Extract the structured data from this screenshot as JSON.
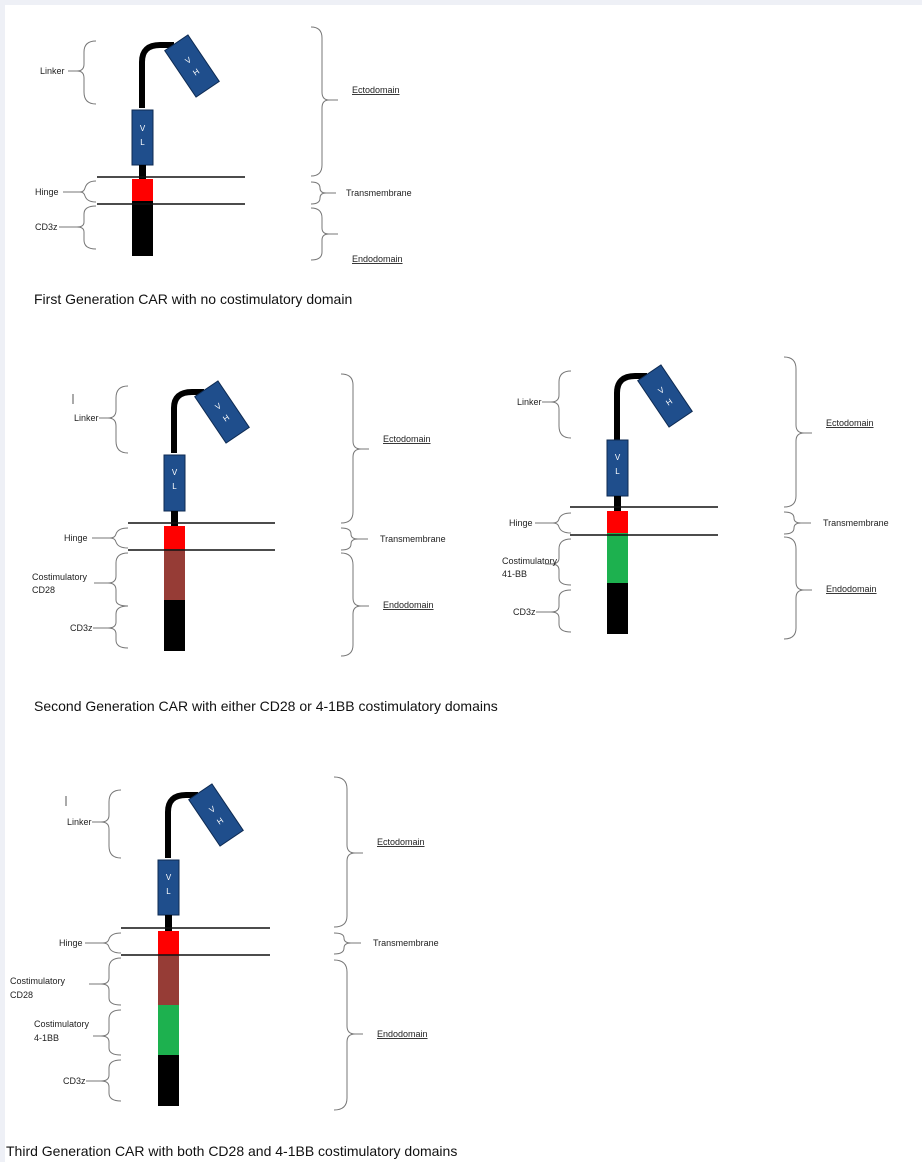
{
  "colors": {
    "vdomain": "#1f4e8c",
    "hinge": "#ff0000",
    "cd28": "#963c36",
    "bb41": "#1db14f",
    "cd3z": "#000000"
  },
  "panels": [
    {
      "caption": "First Generation CAR with no costimulatory domain",
      "vh": [
        "V",
        "H"
      ],
      "vl": [
        "V",
        "L"
      ],
      "left_labels": {
        "linker": "Linker",
        "hinge": "Hinge",
        "cd3z": "CD3z"
      },
      "right_labels": {
        "ectodomain": "Ectodomain",
        "transmembrane": "Transmembrane",
        "endodomain": "Endodomain"
      }
    },
    {
      "caption": "Second Generation CAR with either CD28 or 4-1BB costimulatory domains",
      "vh": [
        "V",
        "H"
      ],
      "vl": [
        "V",
        "L"
      ],
      "left_labels": {
        "linker": "Linker",
        "hinge": "Hinge",
        "cost_line1": "Costimulatory",
        "cost_line2": "CD28",
        "cd3z": "CD3z"
      },
      "right_labels": {
        "ectodomain": "Ectodomain",
        "transmembrane": "Transmembrane",
        "endodomain": "Endodomain"
      }
    },
    {
      "vh": [
        "V",
        "H"
      ],
      "vl": [
        "V",
        "L"
      ],
      "left_labels": {
        "linker": "Linker",
        "hinge": "Hinge",
        "cost_line1": "Costimulatory",
        "cost_line2": "41-BB",
        "cd3z": "CD3z"
      },
      "right_labels": {
        "ectodomain": "Ectodomain",
        "transmembrane": "Transmembrane",
        "endodomain": "Endodomain"
      }
    },
    {
      "caption": "Third Generation CAR with both CD28 and 4-1BB costimulatory domains",
      "vh": [
        "V",
        "H"
      ],
      "vl": [
        "V",
        "L"
      ],
      "left_labels": {
        "linker": "Linker",
        "hinge": "Hinge",
        "cost_a_line1": "Costimulatory",
        "cost_a_line2": "CD28",
        "cost_b_line1": "Costimulatory",
        "cost_b_line2": "4-1BB",
        "cd3z": "CD3z"
      },
      "right_labels": {
        "ectodomain": "Ectodomain",
        "transmembrane": "Transmembrane",
        "endodomain": "Endodomain"
      }
    }
  ]
}
